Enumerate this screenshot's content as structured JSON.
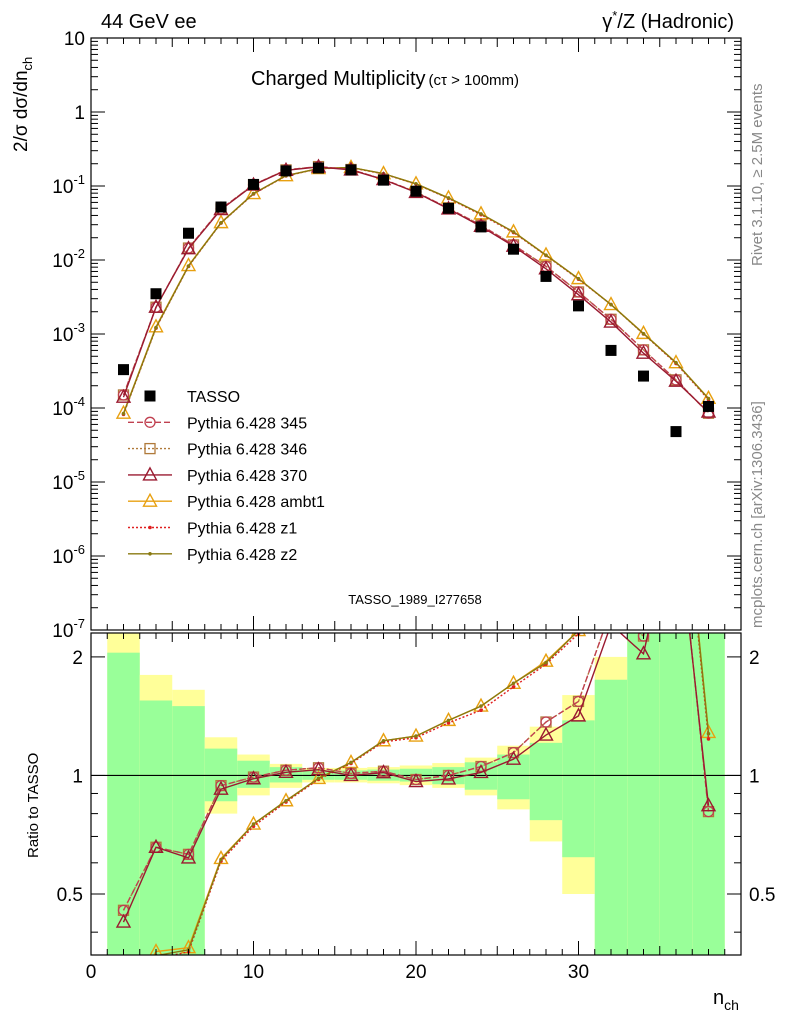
{
  "header": {
    "left": "44 GeV ee",
    "right_prefix": "γ",
    "right_sup": "*",
    "right_suffix": "/Z (Hadronic)"
  },
  "side_labels": {
    "rivet": "Rivet 3.1.10, ≥ 2.5M events",
    "mcplots": "mcplots.cern.ch [arXiv:1306.3436]"
  },
  "chart_data": {
    "type": "scatter",
    "title": "Charged Multiplicity",
    "title_suffix": "(cτ > 100mm)",
    "watermark": "TASSO_1989_I277658",
    "xlabel": "n",
    "xlabel_sub": "ch",
    "ylabel": "2/σ dσ/dn",
    "ylabel_sub": "ch",
    "ratio_ylabel": "Ratio to TASSO",
    "xlim": [
      0,
      40
    ],
    "ylim": [
      1e-07,
      10
    ],
    "yscale": "log",
    "ratio_ylim": [
      0.35,
      2.3
    ],
    "ratio_yscale": "log",
    "xticks": [
      0,
      10,
      20,
      30
    ],
    "yticks": [
      {
        "base": "10",
        "exp": "-7",
        "value": 1e-07
      },
      {
        "base": "10",
        "exp": "-6",
        "value": 1e-06
      },
      {
        "base": "10",
        "exp": "-5",
        "value": 1e-05
      },
      {
        "base": "10",
        "exp": "-4",
        "value": 0.0001
      },
      {
        "base": "10",
        "exp": "-3",
        "value": 0.001
      },
      {
        "base": "10",
        "exp": "-2",
        "value": 0.01
      },
      {
        "base": "10",
        "exp": "-1",
        "value": 0.1
      },
      {
        "base": "1",
        "exp": "",
        "value": 1
      },
      {
        "base": "10",
        "exp": "",
        "value": 10
      }
    ],
    "ratio_yticks": [
      {
        "label": "0.5",
        "value": 0.5
      },
      {
        "label": "1",
        "value": 1
      },
      {
        "label": "2",
        "value": 2
      }
    ],
    "legend_position": "left-middle",
    "data": {
      "name": "TASSO",
      "x": [
        2,
        4,
        6,
        8,
        10,
        12,
        14,
        16,
        18,
        20,
        22,
        24,
        26,
        28,
        30,
        32,
        34,
        36,
        38
      ],
      "y": [
        0.00033,
        0.0035,
        0.023,
        0.052,
        0.105,
        0.16,
        0.175,
        0.165,
        0.12,
        0.085,
        0.05,
        0.028,
        0.014,
        0.006,
        0.0024,
        0.0006,
        0.00027,
        4.8e-05,
        0.000105
      ]
    },
    "series": [
      {
        "name": "Pythia 6.428 345",
        "color": "#c04050",
        "marker": "open-circle",
        "dash": "6,3",
        "y": [
          0.00015,
          0.0023,
          0.0145,
          0.049,
          0.104,
          0.165,
          0.183,
          0.167,
          0.123,
          0.083,
          0.05,
          0.0295,
          0.016,
          0.0082,
          0.0037,
          0.00158,
          0.00061,
          0.00024,
          8.5e-05
        ]
      },
      {
        "name": "Pythia 6.428 346",
        "color": "#b07a3a",
        "marker": "open-square",
        "dash": "2,2",
        "y": [
          0.00015,
          0.0023,
          0.0145,
          0.049,
          0.104,
          0.165,
          0.183,
          0.167,
          0.123,
          0.083,
          0.05,
          0.0295,
          0.016,
          0.0082,
          0.0037,
          0.00158,
          0.00061,
          0.00024,
          8.5e-05
        ]
      },
      {
        "name": "Pythia 6.428 370",
        "color": "#9a1a30",
        "marker": "open-triangle",
        "dash": "",
        "y": [
          0.00014,
          0.0023,
          0.0142,
          0.048,
          0.103,
          0.163,
          0.181,
          0.165,
          0.122,
          0.082,
          0.049,
          0.0285,
          0.0154,
          0.0076,
          0.0034,
          0.00145,
          0.00055,
          0.00023,
          8.8e-05
        ]
      },
      {
        "name": "Pythia 6.428 ambt1",
        "color": "#e8a010",
        "marker": "open-triangle",
        "dash": "",
        "y": [
          8.5e-05,
          0.00125,
          0.0084,
          0.032,
          0.079,
          0.138,
          0.172,
          0.178,
          0.147,
          0.107,
          0.069,
          0.042,
          0.024,
          0.0117,
          0.0056,
          0.0025,
          0.00102,
          0.00041,
          0.000135
        ]
      },
      {
        "name": "Pythia 6.428 z1",
        "color": "#e02020",
        "marker": "dot",
        "dash": "2,2",
        "y": [
          8.2e-05,
          0.0012,
          0.0082,
          0.0315,
          0.078,
          0.137,
          0.171,
          0.177,
          0.146,
          0.106,
          0.068,
          0.041,
          0.0235,
          0.0115,
          0.0055,
          0.0025,
          0.001,
          0.0004,
          0.00013
        ]
      },
      {
        "name": "Pythia 6.428 z2",
        "color": "#8a7a10",
        "marker": "dot",
        "dash": "",
        "y": [
          8.4e-05,
          0.00122,
          0.0083,
          0.0318,
          0.079,
          0.138,
          0.172,
          0.178,
          0.147,
          0.107,
          0.069,
          0.042,
          0.024,
          0.0116,
          0.0056,
          0.0025,
          0.00101,
          0.00041,
          0.000134
        ]
      }
    ],
    "ratio_band": {
      "x_edges": [
        1,
        3,
        5,
        7,
        9,
        11,
        13,
        15,
        17,
        19,
        21,
        23,
        25,
        27,
        29,
        31,
        33,
        35,
        37,
        39
      ],
      "inner_lo": [
        0.2,
        0.2,
        0.2,
        0.86,
        0.93,
        0.96,
        0.975,
        0.975,
        0.97,
        0.965,
        0.95,
        0.92,
        0.87,
        0.77,
        0.62,
        0.3,
        0.2,
        0.2,
        0.2
      ],
      "inner_hi": [
        2.05,
        1.55,
        1.5,
        1.17,
        1.09,
        1.05,
        1.03,
        1.03,
        1.035,
        1.04,
        1.05,
        1.08,
        1.13,
        1.21,
        1.38,
        1.75,
        2.8,
        3.0,
        3.0
      ],
      "outer_lo": [
        0.2,
        0.2,
        0.2,
        0.8,
        0.89,
        0.93,
        0.96,
        0.96,
        0.955,
        0.945,
        0.93,
        0.89,
        0.82,
        0.68,
        0.5,
        0.2,
        0.2,
        0.2,
        0.2
      ],
      "outer_hi": [
        3.0,
        1.8,
        1.65,
        1.25,
        1.13,
        1.07,
        1.045,
        1.045,
        1.05,
        1.06,
        1.075,
        1.11,
        1.19,
        1.33,
        1.6,
        2.0,
        3.0,
        3.0,
        3.0
      ],
      "inner_color": "#99ff99",
      "outer_color": "#ffff99"
    }
  }
}
